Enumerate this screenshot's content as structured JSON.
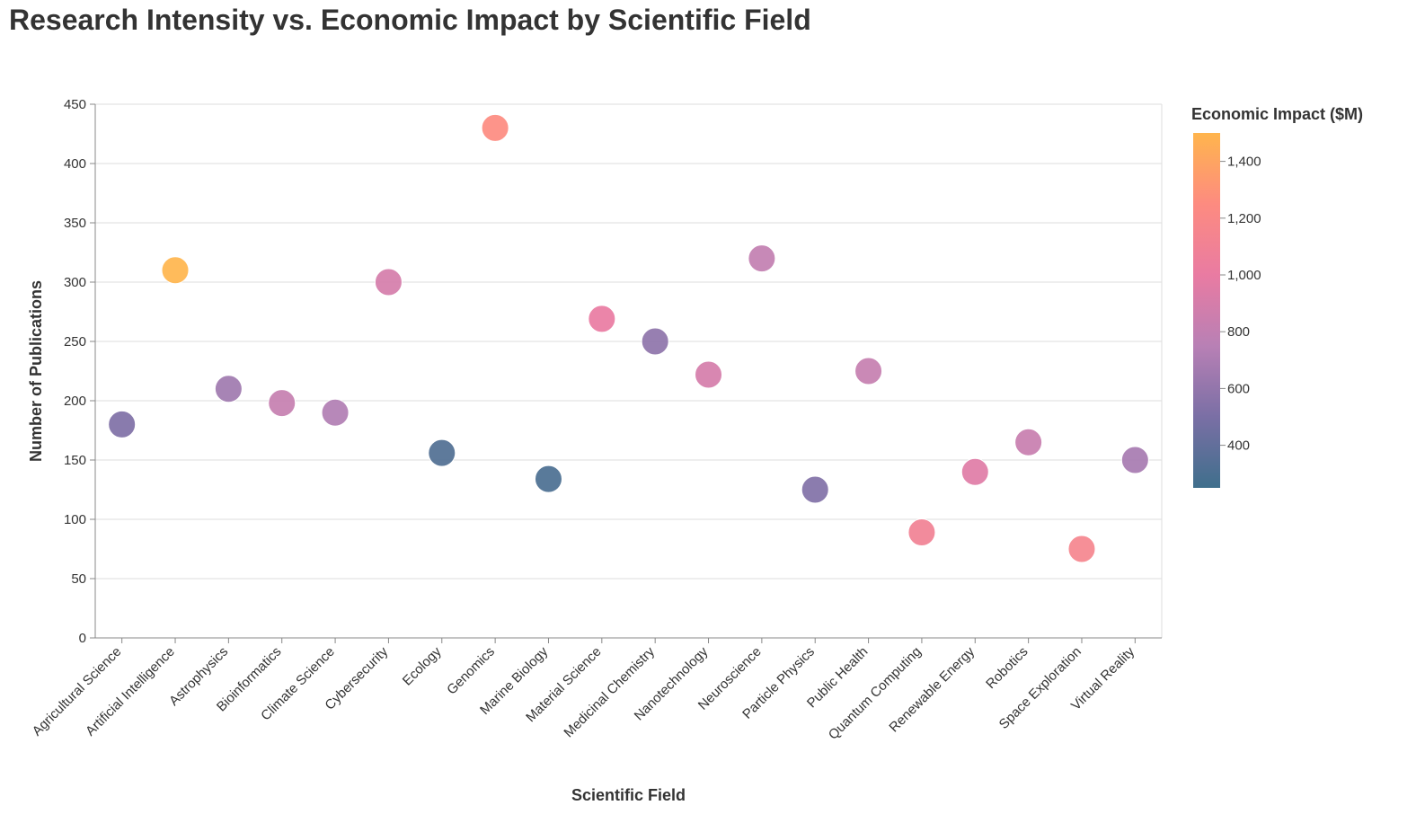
{
  "chart_data": {
    "type": "scatter",
    "title": "Research Intensity vs. Economic Impact by Scientific Field",
    "xlabel": "Scientific Field",
    "ylabel": "Number of Publications",
    "ylim": [
      0,
      450
    ],
    "yticks": [
      0,
      50,
      100,
      150,
      200,
      250,
      300,
      350,
      400,
      450
    ],
    "grid": true,
    "color_legend": {
      "title": "Economic Impact ($M)",
      "range": [
        250,
        1500
      ],
      "ticks": [
        400,
        600,
        800,
        1000,
        1200,
        1400
      ],
      "tick_labels": [
        "400",
        "600",
        "800",
        "1,000",
        "1,200",
        "1,400"
      ],
      "colors": [
        "#3f6f8c",
        "#7a6fa5",
        "#b880b5",
        "#e97ba2",
        "#fd8b80",
        "#ffb54d"
      ],
      "placement": "right"
    },
    "points": [
      {
        "category": "Agricultural Science",
        "publications": 180,
        "impact": 520
      },
      {
        "category": "Artificial Intelligence",
        "publications": 310,
        "impact": 1500
      },
      {
        "category": "Astrophysics",
        "publications": 210,
        "impact": 650
      },
      {
        "category": "Bioinformatics",
        "publications": 198,
        "impact": 820
      },
      {
        "category": "Climate Science",
        "publications": 190,
        "impact": 720
      },
      {
        "category": "Cybersecurity",
        "publications": 300,
        "impact": 900
      },
      {
        "category": "Ecology",
        "publications": 156,
        "impact": 320
      },
      {
        "category": "Genomics",
        "publications": 430,
        "impact": 1250
      },
      {
        "category": "Marine Biology",
        "publications": 134,
        "impact": 300
      },
      {
        "category": "Material Science",
        "publications": 269,
        "impact": 1000
      },
      {
        "category": "Medicinal Chemistry",
        "publications": 250,
        "impact": 580
      },
      {
        "category": "Nanotechnology",
        "publications": 222,
        "impact": 900
      },
      {
        "category": "Neuroscience",
        "publications": 320,
        "impact": 800
      },
      {
        "category": "Particle Physics",
        "publications": 125,
        "impact": 530
      },
      {
        "category": "Public Health",
        "publications": 225,
        "impact": 820
      },
      {
        "category": "Quantum Computing",
        "publications": 89,
        "impact": 1100
      },
      {
        "category": "Renewable Energy",
        "publications": 140,
        "impact": 950
      },
      {
        "category": "Robotics",
        "publications": 165,
        "impact": 830
      },
      {
        "category": "Space Exploration",
        "publications": 75,
        "impact": 1150
      },
      {
        "category": "Virtual Reality",
        "publications": 150,
        "impact": 680
      }
    ]
  }
}
